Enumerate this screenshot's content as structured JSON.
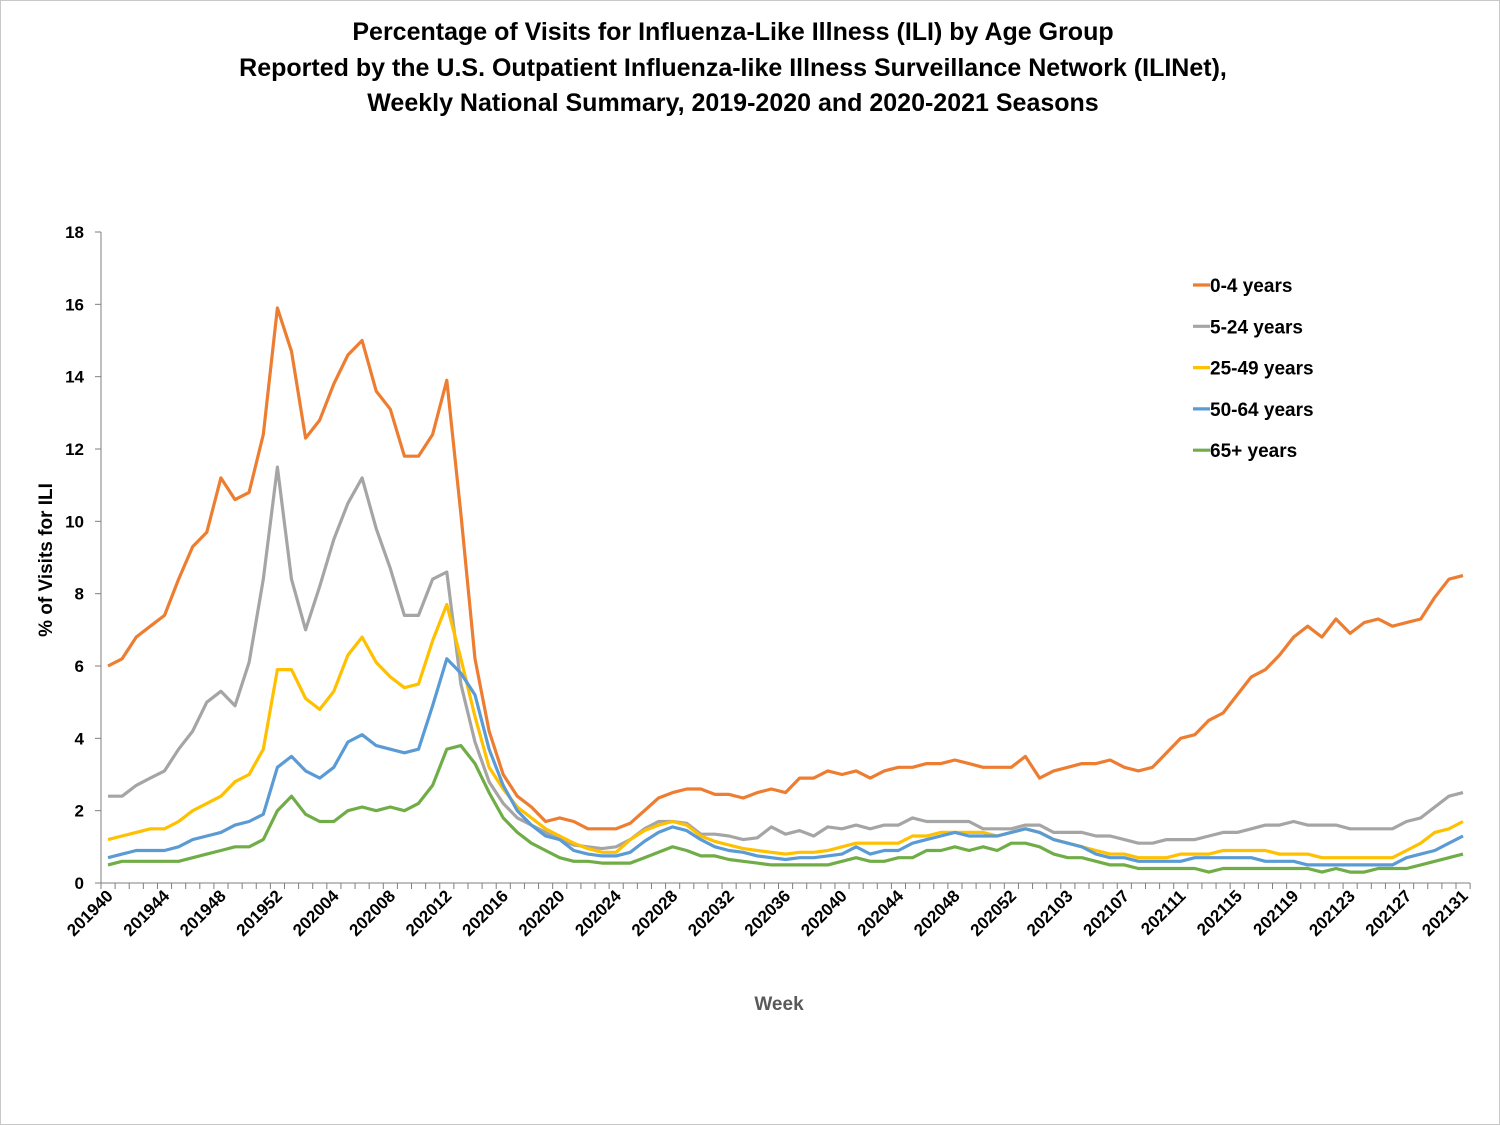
{
  "chart_data": {
    "type": "line",
    "title": [
      "Percentage of Visits for Influenza-Like Illness (ILI) by Age Group",
      "Reported by the U.S. Outpatient Influenza-like Illness Surveillance Network (ILINet),",
      "Weekly National Summary, 2019-2020 and 2020-2021 Seasons"
    ],
    "xlabel": "Week",
    "ylabel": "% of Visits for ILI",
    "ylim": [
      0,
      18
    ],
    "yticks": [
      0,
      2,
      4,
      6,
      8,
      10,
      12,
      14,
      16,
      18
    ],
    "xtick_labels": [
      "201940",
      "201944",
      "201948",
      "201952",
      "202004",
      "202008",
      "202012",
      "202016",
      "202020",
      "202024",
      "202028",
      "202032",
      "202036",
      "202040",
      "202044",
      "202048",
      "202052",
      "202103",
      "202107",
      "202111",
      "202115",
      "202119",
      "202123",
      "202127",
      "202131"
    ],
    "x": [
      "201940",
      "201941",
      "201942",
      "201943",
      "201944",
      "201945",
      "201946",
      "201947",
      "201948",
      "201949",
      "201950",
      "201951",
      "201952",
      "202001",
      "202002",
      "202003",
      "202004",
      "202005",
      "202006",
      "202007",
      "202008",
      "202009",
      "202010",
      "202011",
      "202012",
      "202013",
      "202014",
      "202015",
      "202016",
      "202017",
      "202018",
      "202019",
      "202020",
      "202021",
      "202022",
      "202023",
      "202024",
      "202025",
      "202026",
      "202027",
      "202028",
      "202029",
      "202030",
      "202031",
      "202032",
      "202033",
      "202034",
      "202035",
      "202036",
      "202037",
      "202038",
      "202039",
      "202040",
      "202041",
      "202042",
      "202043",
      "202044",
      "202045",
      "202046",
      "202047",
      "202048",
      "202049",
      "202050",
      "202051",
      "202052",
      "202053",
      "202101",
      "202102",
      "202103",
      "202104",
      "202105",
      "202106",
      "202107",
      "202108",
      "202109",
      "202110",
      "202111",
      "202112",
      "202113",
      "202114",
      "202115",
      "202116",
      "202117",
      "202118",
      "202119",
      "202120",
      "202121",
      "202122",
      "202123",
      "202124",
      "202125",
      "202126",
      "202127",
      "202128",
      "202129",
      "202130",
      "202131"
    ],
    "legend_position": "top-right",
    "grid": false,
    "series": [
      {
        "name": "0-4 years",
        "color": "#ED7D31",
        "values": [
          6.0,
          6.2,
          6.8,
          7.1,
          7.4,
          8.4,
          9.3,
          9.7,
          11.2,
          10.6,
          10.8,
          12.4,
          15.9,
          14.7,
          12.3,
          12.8,
          13.8,
          14.6,
          15.0,
          13.6,
          13.1,
          11.8,
          11.8,
          12.4,
          13.9,
          10.2,
          6.2,
          4.2,
          3.0,
          2.4,
          2.1,
          1.7,
          1.8,
          1.7,
          1.5,
          1.5,
          1.5,
          1.65,
          2.0,
          2.35,
          2.5,
          2.6,
          2.6,
          2.45,
          2.45,
          2.35,
          2.5,
          2.6,
          2.5,
          2.9,
          2.9,
          3.1,
          3.0,
          3.1,
          2.9,
          3.1,
          3.2,
          3.2,
          3.3,
          3.3,
          3.4,
          3.3,
          3.2,
          3.2,
          3.2,
          3.5,
          2.9,
          3.1,
          3.2,
          3.3,
          3.3,
          3.4,
          3.2,
          3.1,
          3.2,
          3.6,
          4.0,
          4.1,
          4.5,
          4.7,
          5.2,
          5.7,
          5.9,
          6.3,
          6.8,
          7.1,
          6.8,
          7.3,
          6.9,
          7.2,
          7.3,
          7.1,
          7.2,
          7.3,
          7.9,
          8.4,
          8.5
        ]
      },
      {
        "name": "5-24 years",
        "color": "#A5A5A5",
        "values": [
          2.4,
          2.4,
          2.7,
          2.9,
          3.1,
          3.7,
          4.2,
          5.0,
          5.3,
          4.9,
          6.1,
          8.4,
          11.5,
          8.4,
          7.0,
          8.2,
          9.5,
          10.5,
          11.2,
          9.8,
          8.7,
          7.4,
          7.4,
          8.4,
          8.6,
          5.5,
          3.9,
          2.8,
          2.2,
          1.8,
          1.6,
          1.4,
          1.2,
          1.05,
          1.0,
          0.95,
          1.0,
          1.2,
          1.5,
          1.7,
          1.7,
          1.65,
          1.35,
          1.35,
          1.3,
          1.2,
          1.25,
          1.55,
          1.35,
          1.45,
          1.3,
          1.55,
          1.5,
          1.6,
          1.5,
          1.6,
          1.6,
          1.8,
          1.7,
          1.7,
          1.7,
          1.7,
          1.5,
          1.5,
          1.5,
          1.6,
          1.6,
          1.4,
          1.4,
          1.4,
          1.3,
          1.3,
          1.2,
          1.1,
          1.1,
          1.2,
          1.2,
          1.2,
          1.3,
          1.4,
          1.4,
          1.5,
          1.6,
          1.6,
          1.7,
          1.6,
          1.6,
          1.6,
          1.5,
          1.5,
          1.5,
          1.5,
          1.7,
          1.8,
          2.1,
          2.4,
          2.5
        ]
      },
      {
        "name": "25-49 years",
        "color": "#FFC000",
        "values": [
          1.2,
          1.3,
          1.4,
          1.5,
          1.5,
          1.7,
          2.0,
          2.2,
          2.4,
          2.8,
          3.0,
          3.7,
          5.9,
          5.9,
          5.1,
          4.8,
          5.3,
          6.3,
          6.8,
          6.1,
          5.7,
          5.4,
          5.5,
          6.7,
          7.7,
          6.2,
          4.6,
          3.2,
          2.6,
          2.1,
          1.8,
          1.5,
          1.3,
          1.1,
          0.95,
          0.85,
          0.85,
          1.2,
          1.45,
          1.6,
          1.7,
          1.6,
          1.3,
          1.15,
          1.05,
          0.95,
          0.9,
          0.85,
          0.8,
          0.85,
          0.85,
          0.9,
          1.0,
          1.1,
          1.1,
          1.1,
          1.1,
          1.3,
          1.3,
          1.4,
          1.4,
          1.4,
          1.4,
          1.3,
          1.4,
          1.5,
          1.4,
          1.2,
          1.1,
          1.0,
          0.9,
          0.8,
          0.8,
          0.7,
          0.7,
          0.7,
          0.8,
          0.8,
          0.8,
          0.9,
          0.9,
          0.9,
          0.9,
          0.8,
          0.8,
          0.8,
          0.7,
          0.7,
          0.7,
          0.7,
          0.7,
          0.7,
          0.9,
          1.1,
          1.4,
          1.5,
          1.7
        ]
      },
      {
        "name": "50-64 years",
        "color": "#5B9BD5",
        "values": [
          0.7,
          0.8,
          0.9,
          0.9,
          0.9,
          1.0,
          1.2,
          1.3,
          1.4,
          1.6,
          1.7,
          1.9,
          3.2,
          3.5,
          3.1,
          2.9,
          3.2,
          3.9,
          4.1,
          3.8,
          3.7,
          3.6,
          3.7,
          4.9,
          6.2,
          5.8,
          5.2,
          3.7,
          2.7,
          2.0,
          1.6,
          1.3,
          1.2,
          0.9,
          0.8,
          0.75,
          0.75,
          0.85,
          1.15,
          1.4,
          1.55,
          1.45,
          1.2,
          1.0,
          0.9,
          0.85,
          0.75,
          0.7,
          0.65,
          0.7,
          0.7,
          0.75,
          0.8,
          1.0,
          0.8,
          0.9,
          0.9,
          1.1,
          1.2,
          1.3,
          1.4,
          1.3,
          1.3,
          1.3,
          1.4,
          1.5,
          1.4,
          1.2,
          1.1,
          1.0,
          0.8,
          0.7,
          0.7,
          0.6,
          0.6,
          0.6,
          0.6,
          0.7,
          0.7,
          0.7,
          0.7,
          0.7,
          0.6,
          0.6,
          0.6,
          0.5,
          0.5,
          0.5,
          0.5,
          0.5,
          0.5,
          0.5,
          0.7,
          0.8,
          0.9,
          1.1,
          1.3
        ]
      },
      {
        "name": "65+ years",
        "color": "#70AD47",
        "values": [
          0.5,
          0.6,
          0.6,
          0.6,
          0.6,
          0.6,
          0.7,
          0.8,
          0.9,
          1.0,
          1.0,
          1.2,
          2.0,
          2.4,
          1.9,
          1.7,
          1.7,
          2.0,
          2.1,
          2.0,
          2.1,
          2.0,
          2.2,
          2.7,
          3.7,
          3.8,
          3.3,
          2.5,
          1.8,
          1.4,
          1.1,
          0.9,
          0.7,
          0.6,
          0.6,
          0.55,
          0.55,
          0.55,
          0.7,
          0.85,
          1.0,
          0.9,
          0.75,
          0.75,
          0.65,
          0.6,
          0.55,
          0.5,
          0.5,
          0.5,
          0.5,
          0.5,
          0.6,
          0.7,
          0.6,
          0.6,
          0.7,
          0.7,
          0.9,
          0.9,
          1.0,
          0.9,
          1.0,
          0.9,
          1.1,
          1.1,
          1.0,
          0.8,
          0.7,
          0.7,
          0.6,
          0.5,
          0.5,
          0.4,
          0.4,
          0.4,
          0.4,
          0.4,
          0.3,
          0.4,
          0.4,
          0.4,
          0.4,
          0.4,
          0.4,
          0.4,
          0.3,
          0.4,
          0.3,
          0.3,
          0.4,
          0.4,
          0.4,
          0.5,
          0.6,
          0.7,
          0.8
        ]
      }
    ]
  }
}
